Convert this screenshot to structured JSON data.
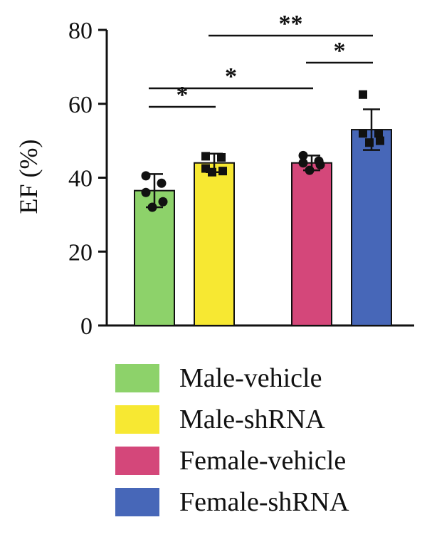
{
  "chart_data": {
    "type": "bar",
    "title": "",
    "xlabel": "",
    "ylabel": "EF (%)",
    "ylim": [
      0,
      80
    ],
    "yticks": [
      "0",
      "20",
      "40",
      "60",
      "80"
    ],
    "grid": false,
    "legend_position": "bottom",
    "series": [
      {
        "name": "Male-vehicle",
        "color": "#8dd26a",
        "value": 36.5,
        "error": 4.5,
        "marker": "circle",
        "points": [
          40.5,
          38.5,
          36.0,
          33.5,
          32.0
        ]
      },
      {
        "name": "Male-shRNA",
        "color": "#f7e832",
        "value": 44.0,
        "error": 2.5,
        "marker": "square",
        "points": [
          45.8,
          45.5,
          42.5,
          41.8,
          41.5
        ]
      },
      {
        "name": "Female-vehicle",
        "color": "#d4477a",
        "value": 44.0,
        "error": 2.0,
        "marker": "circle",
        "points": [
          46.0,
          44.5,
          44.0,
          43.5,
          42.0
        ]
      },
      {
        "name": "Female-shRNA",
        "color": "#4767b8",
        "value": 53.0,
        "error": 5.5,
        "marker": "square",
        "points": [
          62.5,
          52.0,
          52.0,
          50.0,
          49.5
        ]
      }
    ],
    "significance": [
      {
        "from": "Male-vehicle",
        "to": "Male-shRNA",
        "label": "*"
      },
      {
        "from": "Male-vehicle",
        "to": "Female-vehicle",
        "label": "*"
      },
      {
        "from": "Female-vehicle",
        "to": "Female-shRNA",
        "label": "*"
      },
      {
        "from": "Male-shRNA",
        "to": "Female-shRNA",
        "label": "**"
      }
    ]
  }
}
